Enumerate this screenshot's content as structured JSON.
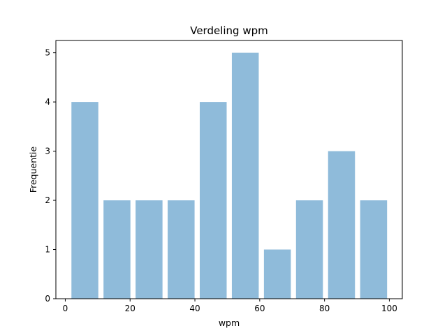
{
  "chart_data": {
    "type": "bar",
    "title": "Verdeling wpm",
    "xlabel": "wpm",
    "ylabel": "Frequentie",
    "xlim": [
      -2.9,
      104.0
    ],
    "ylim": [
      0,
      5.25
    ],
    "xticks": [
      0,
      20,
      40,
      60,
      80,
      100
    ],
    "yticks": [
      0,
      1,
      2,
      3,
      4,
      5
    ],
    "bar_color": "#8fbbda",
    "grid": false,
    "bins": [
      {
        "start": 1.9,
        "end": 10.2,
        "value": 4
      },
      {
        "start": 11.8,
        "end": 20.1,
        "value": 2
      },
      {
        "start": 21.7,
        "end": 30.0,
        "value": 2
      },
      {
        "start": 31.6,
        "end": 39.9,
        "value": 2
      },
      {
        "start": 41.5,
        "end": 49.8,
        "value": 4
      },
      {
        "start": 51.4,
        "end": 59.7,
        "value": 5
      },
      {
        "start": 61.3,
        "end": 69.6,
        "value": 1
      },
      {
        "start": 71.2,
        "end": 79.5,
        "value": 2
      },
      {
        "start": 81.1,
        "end": 89.4,
        "value": 3
      },
      {
        "start": 91.0,
        "end": 99.3,
        "value": 2
      }
    ]
  }
}
